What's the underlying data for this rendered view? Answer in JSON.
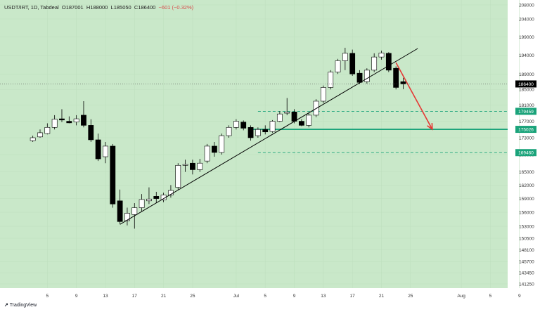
{
  "header": {
    "symbol": "USDT/IRT, 1D, Tabdeal",
    "open": "O187001",
    "high": "H188000",
    "low": "L185050",
    "close": "C186400",
    "change": "−601 (−0.32%)"
  },
  "branding": {
    "name": "TradingView"
  },
  "colors": {
    "background": "#c9e8c9",
    "bull_body": "#ffffff",
    "bear_body": "#000000",
    "trendline": "#000000",
    "arrow": "#e53935",
    "levels": "#1aa37a",
    "price_tag": "#000000"
  },
  "chart_data": {
    "type": "candlestick",
    "y_axis": {
      "ticks": [
        "208000",
        "204000",
        "199000",
        "194000",
        "189000",
        "185000",
        "181000",
        "177000",
        "173000",
        "169000",
        "165000",
        "162000",
        "159000",
        "156000",
        "153000",
        "150500",
        "148100",
        "145700",
        "143450",
        "141250"
      ],
      "scale": "log",
      "ylim": [
        140000,
        209000
      ]
    },
    "x_axis": {
      "ticks": [
        "5",
        "9",
        "13",
        "17",
        "21",
        "25",
        "Jul",
        "5",
        "9",
        "13",
        "17",
        "21",
        "25",
        "Aug",
        "5",
        "9"
      ]
    },
    "candles": [
      {
        "d": "Jun 3",
        "o": 172300,
        "h": 173500,
        "l": 172000,
        "c": 173000
      },
      {
        "d": "Jun 4",
        "o": 173200,
        "h": 175000,
        "l": 173000,
        "c": 174200
      },
      {
        "d": "Jun 5",
        "o": 174000,
        "h": 176500,
        "l": 173800,
        "c": 175500
      },
      {
        "d": "Jun 6",
        "o": 175500,
        "h": 178500,
        "l": 175000,
        "c": 177500
      },
      {
        "d": "Jun 7",
        "o": 177600,
        "h": 180000,
        "l": 176800,
        "c": 177300
      },
      {
        "d": "Jun 8",
        "o": 177000,
        "h": 178200,
        "l": 176500,
        "c": 176600
      },
      {
        "d": "Jun 9",
        "o": 176800,
        "h": 178500,
        "l": 176000,
        "c": 177600
      },
      {
        "d": "Jun 10",
        "o": 178500,
        "h": 182000,
        "l": 175500,
        "c": 176000
      },
      {
        "d": "Jun 11",
        "o": 176000,
        "h": 177500,
        "l": 172000,
        "c": 172500
      },
      {
        "d": "Jun 12",
        "o": 172500,
        "h": 174000,
        "l": 167500,
        "c": 168000
      },
      {
        "d": "Jun 13",
        "o": 168500,
        "h": 172000,
        "l": 167000,
        "c": 171000
      },
      {
        "d": "Jun 14",
        "o": 171000,
        "h": 171500,
        "l": 157000,
        "c": 157800
      },
      {
        "d": "Jun 15",
        "o": 158500,
        "h": 161000,
        "l": 153500,
        "c": 154000
      },
      {
        "d": "Jun 16",
        "o": 154200,
        "h": 157000,
        "l": 153200,
        "c": 155800
      },
      {
        "d": "Jun 17",
        "o": 155500,
        "h": 158000,
        "l": 152500,
        "c": 157000
      },
      {
        "d": "Jun 18",
        "o": 157000,
        "h": 160000,
        "l": 156200,
        "c": 158800
      },
      {
        "d": "Jun 19",
        "o": 158500,
        "h": 161500,
        "l": 157800,
        "c": 158900
      },
      {
        "d": "Jun 20",
        "o": 159500,
        "h": 160500,
        "l": 158000,
        "c": 159000
      },
      {
        "d": "Jun 21",
        "o": 158700,
        "h": 160300,
        "l": 158200,
        "c": 159800
      },
      {
        "d": "Jun 22",
        "o": 159800,
        "h": 162000,
        "l": 159200,
        "c": 160800
      },
      {
        "d": "Jun 23",
        "o": 161500,
        "h": 167000,
        "l": 161000,
        "c": 166500
      },
      {
        "d": "Jun 24",
        "o": 166500,
        "h": 167800,
        "l": 165000,
        "c": 166700
      },
      {
        "d": "Jun 25",
        "o": 167000,
        "h": 167800,
        "l": 164400,
        "c": 165500
      },
      {
        "d": "Jun 26",
        "o": 165500,
        "h": 168000,
        "l": 165000,
        "c": 167000
      },
      {
        "d": "Jun 27",
        "o": 167500,
        "h": 171500,
        "l": 167000,
        "c": 171000
      },
      {
        "d": "Jun 28",
        "o": 171000,
        "h": 172000,
        "l": 168500,
        "c": 169500
      },
      {
        "d": "Jun 29",
        "o": 169500,
        "h": 174000,
        "l": 169000,
        "c": 173500
      },
      {
        "d": "Jun 30",
        "o": 173500,
        "h": 176000,
        "l": 173000,
        "c": 175500
      },
      {
        "d": "Jul 1",
        "o": 175500,
        "h": 177500,
        "l": 175000,
        "c": 177000
      },
      {
        "d": "Jul 2",
        "o": 176800,
        "h": 177200,
        "l": 174800,
        "c": 175300
      },
      {
        "d": "Jul 3",
        "o": 175500,
        "h": 176000,
        "l": 172300,
        "c": 173000
      },
      {
        "d": "Jul 4",
        "o": 173500,
        "h": 175500,
        "l": 173000,
        "c": 175000
      },
      {
        "d": "Jul 5",
        "o": 175000,
        "h": 176000,
        "l": 173800,
        "c": 174400
      },
      {
        "d": "Jul 6",
        "o": 174500,
        "h": 177300,
        "l": 174200,
        "c": 177000
      },
      {
        "d": "Jul 7",
        "o": 177000,
        "h": 179500,
        "l": 176800,
        "c": 178800
      },
      {
        "d": "Jul 8",
        "o": 179000,
        "h": 182800,
        "l": 178500,
        "c": 179300
      },
      {
        "d": "Jul 9",
        "o": 179300,
        "h": 180000,
        "l": 176500,
        "c": 177000
      },
      {
        "d": "Jul 10",
        "o": 177000,
        "h": 177500,
        "l": 175800,
        "c": 176000
      },
      {
        "d": "Jul 11",
        "o": 176000,
        "h": 179000,
        "l": 175500,
        "c": 178500
      },
      {
        "d": "Jul 12",
        "o": 178500,
        "h": 182500,
        "l": 178000,
        "c": 182000
      },
      {
        "d": "Jul 13",
        "o": 182000,
        "h": 186000,
        "l": 181500,
        "c": 185500
      },
      {
        "d": "Jul 14",
        "o": 185500,
        "h": 190000,
        "l": 185000,
        "c": 189500
      },
      {
        "d": "Jul 15",
        "o": 189500,
        "h": 193000,
        "l": 189000,
        "c": 192500
      },
      {
        "d": "Jul 16",
        "o": 192500,
        "h": 196000,
        "l": 190000,
        "c": 194500
      },
      {
        "d": "Jul 17",
        "o": 194500,
        "h": 195500,
        "l": 188500,
        "c": 189000
      },
      {
        "d": "Jul 18",
        "o": 189200,
        "h": 190000,
        "l": 186400,
        "c": 186800
      },
      {
        "d": "Jul 19",
        "o": 187000,
        "h": 190500,
        "l": 186500,
        "c": 190000
      },
      {
        "d": "Jul 20",
        "o": 190000,
        "h": 194500,
        "l": 189500,
        "c": 193500
      },
      {
        "d": "Jul 21",
        "o": 193500,
        "h": 195200,
        "l": 192800,
        "c": 194600
      },
      {
        "d": "Jul 22",
        "o": 194500,
        "h": 194800,
        "l": 189500,
        "c": 190000
      },
      {
        "d": "Jul 23",
        "o": 190500,
        "h": 191000,
        "l": 185000,
        "c": 185500
      },
      {
        "d": "Jul 24",
        "o": 187001,
        "h": 188000,
        "l": 185050,
        "c": 186400
      }
    ],
    "trendline": [
      {
        "d": "Jun 15",
        "v": 153400
      },
      {
        "d": "Jul 26",
        "v": 195800
      }
    ],
    "arrow": [
      {
        "d": "Jul 23",
        "v": 192000
      },
      {
        "d": "Jul 28",
        "v": 175026
      }
    ],
    "levels": [
      {
        "value": 175026,
        "label": "175026",
        "style": "solid",
        "from": "Jul 3"
      },
      {
        "value": 179459,
        "label": "179459",
        "style": "dashed",
        "from": "Jul 4"
      },
      {
        "value": 169460,
        "label": "169460",
        "style": "dashed",
        "from": "Jul 4"
      }
    ],
    "last_price": {
      "value": 186400,
      "label": "186400"
    }
  }
}
